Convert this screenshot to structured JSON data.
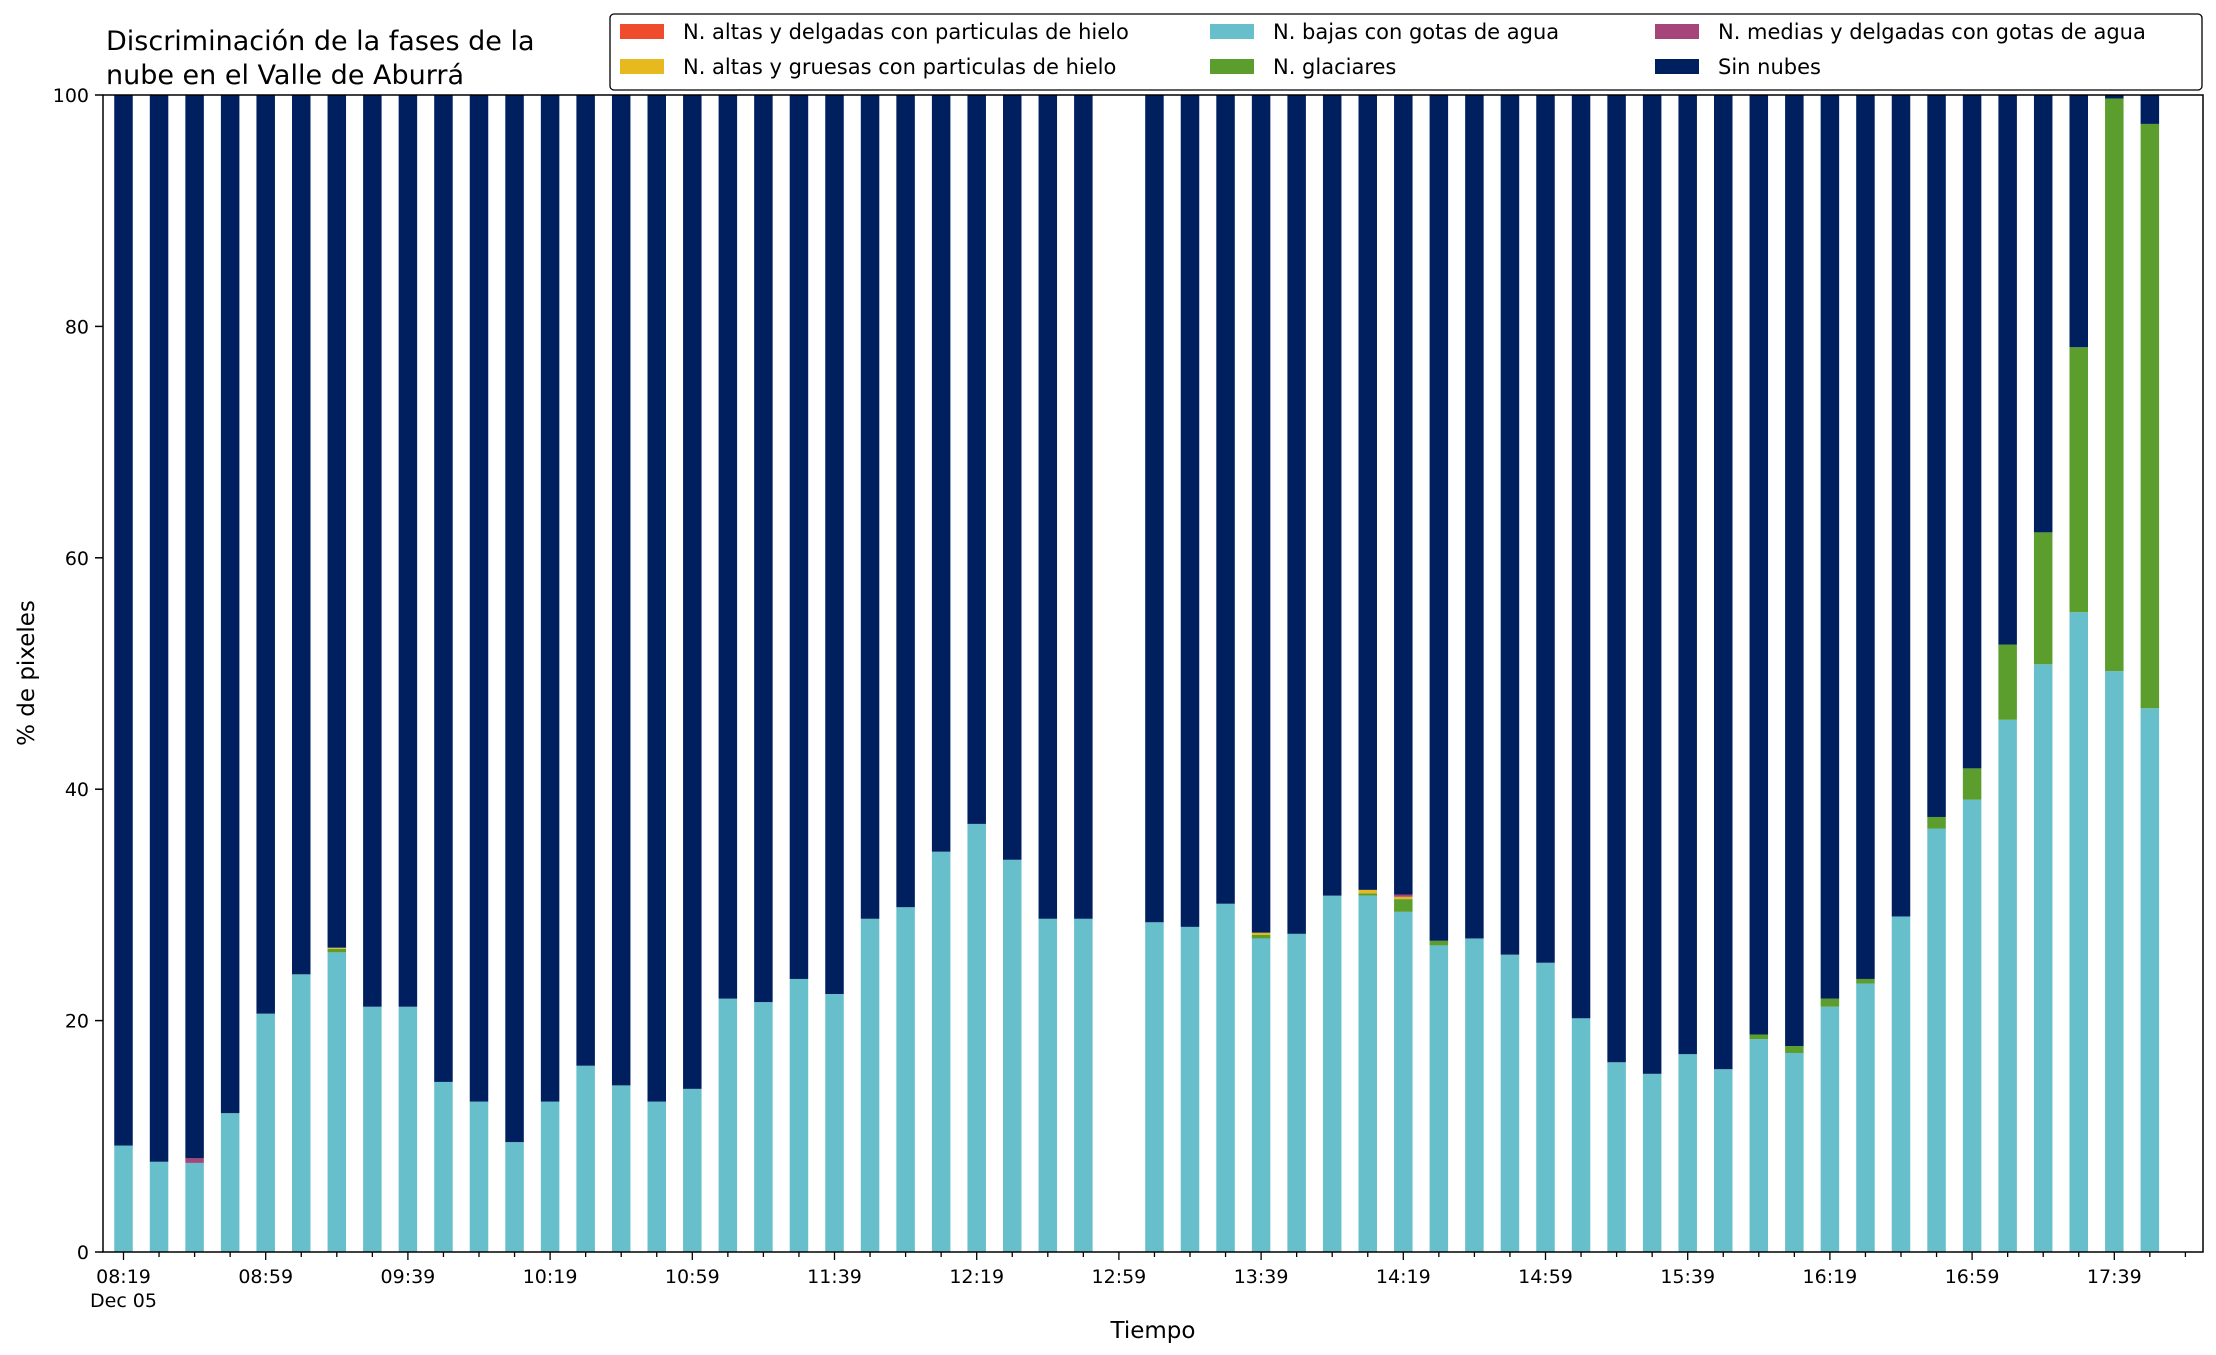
{
  "chart_data": {
    "type": "bar",
    "stacked": true,
    "title_lines": [
      "Discriminación de la fases de la",
      "nube en el Valle de Aburrá"
    ],
    "xlabel": "Tiempo",
    "ylabel": "% de pixeles",
    "ylim": [
      0,
      100
    ],
    "yticks": [
      0,
      20,
      40,
      60,
      80,
      100
    ],
    "x_tick_labels": [
      "08:19",
      "08:59",
      "09:39",
      "10:19",
      "10:59",
      "11:39",
      "12:19",
      "12:59",
      "13:39",
      "14:19",
      "14:59",
      "15:39",
      "16:19",
      "16:59",
      "17:39"
    ],
    "x_sub_label": "Dec 05",
    "legend_placement": "top-right",
    "legend": [
      {
        "name": "N. altas y delgadas con particulas de hielo",
        "color": "#ee4c2c"
      },
      {
        "name": "N. altas y gruesas con particulas de hielo",
        "color": "#e6b91e"
      },
      {
        "name": "N. bajas con gotas de agua",
        "color": "#67bfcc"
      },
      {
        "name": "N. glaciares",
        "color": "#5c9e2e"
      },
      {
        "name": "N. medias y delgadas con gotas de agua",
        "color": "#a5457a"
      },
      {
        "name": "Sin nubes",
        "color": "#001f5f"
      }
    ],
    "categories": [
      "08:19",
      "08:29",
      "08:39",
      "08:49",
      "08:59",
      "09:09",
      "09:19",
      "09:29",
      "09:39",
      "09:49",
      "09:59",
      "10:09",
      "10:19",
      "10:29",
      "10:39",
      "10:49",
      "10:59",
      "11:09",
      "11:19",
      "11:29",
      "11:39",
      "11:49",
      "11:59",
      "12:09",
      "12:19",
      "12:29",
      "12:39",
      "12:49",
      "12:59",
      "13:09",
      "13:19",
      "13:29",
      "13:39",
      "13:49",
      "13:59",
      "14:09",
      "14:19",
      "14:29",
      "14:39",
      "14:49",
      "14:59",
      "15:09",
      "15:19",
      "15:29",
      "15:39",
      "15:49",
      "15:59",
      "16:09",
      "16:19",
      "16:29",
      "16:39",
      "16:49",
      "16:59",
      "17:09",
      "17:19",
      "17:29",
      "17:39",
      "17:49"
    ],
    "series": [
      {
        "name": "N. bajas con gotas de agua",
        "color": "#67bfcc",
        "values": [
          9.2,
          7.8,
          7.7,
          12,
          20.6,
          24,
          25.9,
          21.2,
          21.2,
          14.7,
          13,
          9.5,
          13,
          16.1,
          14.4,
          13,
          14.1,
          21.9,
          21.6,
          23.6,
          22.3,
          28.8,
          29.8,
          34.6,
          37,
          33.9,
          28.8,
          28.8,
          null,
          28.5,
          28.1,
          30.1,
          27.1,
          27.5,
          30.8,
          30.8,
          29.4,
          26.5,
          27.1,
          25.7,
          25,
          20.2,
          16.4,
          15.4,
          17.1,
          15.8,
          18.4,
          17.2,
          21.2,
          23.2,
          29,
          36.6,
          39.1,
          46,
          50.8,
          55.3,
          50.2,
          47
        ]
      },
      {
        "name": "N. glaciares",
        "color": "#5c9e2e",
        "values": [
          0,
          0,
          0,
          0,
          0,
          0,
          0.3,
          0,
          0,
          0,
          0,
          0,
          0,
          0,
          0,
          0,
          0,
          0,
          0,
          0,
          0,
          0,
          0,
          0,
          0,
          0,
          0,
          0,
          null,
          0,
          0,
          0,
          0.3,
          0,
          0,
          0.2,
          1.1,
          0.4,
          0,
          0,
          0,
          0,
          0,
          0,
          0,
          0,
          0.4,
          0.6,
          0.7,
          0.4,
          0,
          1,
          2.7,
          6.5,
          11.4,
          22.9,
          49.5,
          50.5
        ]
      },
      {
        "name": "N. altas y gruesas con particulas de hielo",
        "color": "#e6b91e",
        "values": [
          0,
          0,
          0,
          0,
          0,
          0,
          0.1,
          0,
          0,
          0,
          0,
          0,
          0,
          0,
          0,
          0,
          0,
          0,
          0,
          0,
          0,
          0,
          0,
          0,
          0,
          0,
          0,
          0,
          null,
          0,
          0,
          0,
          0.2,
          0,
          0,
          0.3,
          0.2,
          0,
          0,
          0,
          0,
          0,
          0,
          0,
          0,
          0,
          0,
          0,
          0,
          0,
          0,
          0,
          0,
          0,
          0,
          0,
          0,
          0
        ]
      },
      {
        "name": "N. altas y delgadas con particulas de hielo",
        "color": "#ee4c2c",
        "values": [
          0,
          0,
          0,
          0,
          0,
          0,
          0,
          0,
          0,
          0,
          0,
          0,
          0,
          0,
          0,
          0,
          0,
          0,
          0,
          0,
          0,
          0,
          0,
          0,
          0,
          0,
          0,
          0,
          null,
          0,
          0,
          0,
          0,
          0,
          0,
          0,
          0,
          0,
          0,
          0,
          0,
          0,
          0,
          0,
          0,
          0,
          0,
          0,
          0,
          0,
          0,
          0,
          0,
          0,
          0,
          0,
          0,
          0
        ]
      },
      {
        "name": "N. medias y delgadas con gotas de agua",
        "color": "#a5457a",
        "values": [
          0,
          0,
          0.4,
          0,
          0,
          0,
          0,
          0,
          0,
          0,
          0,
          0,
          0,
          0,
          0,
          0,
          0,
          0,
          0,
          0,
          0,
          0,
          0,
          0,
          0,
          0,
          0,
          0,
          null,
          0,
          0,
          0,
          0,
          0,
          0,
          0,
          0.2,
          0,
          0,
          0,
          0,
          0,
          0,
          0,
          0,
          0,
          0,
          0,
          0,
          0,
          0,
          0,
          0,
          0,
          0,
          0,
          0,
          0
        ]
      },
      {
        "name": "Sin nubes",
        "color": "#001f5f",
        "values": [
          90.8,
          92.2,
          91.9,
          88,
          79.4,
          76,
          73.7,
          78.8,
          78.8,
          85.3,
          87,
          90.5,
          87,
          83.9,
          85.6,
          87,
          85.9,
          78.1,
          78.4,
          76.4,
          77.7,
          71.2,
          70.2,
          65.4,
          63,
          66.1,
          71.2,
          71.2,
          null,
          71.5,
          71.9,
          69.9,
          72.4,
          72.5,
          69.2,
          68.7,
          69.1,
          73.1,
          72.9,
          74.3,
          75,
          79.8,
          83.6,
          84.6,
          82.9,
          84.2,
          81.2,
          82.2,
          78.1,
          76.4,
          71,
          62.4,
          58.2,
          47.5,
          37.8,
          21.8,
          0.3,
          2.5
        ]
      }
    ]
  }
}
